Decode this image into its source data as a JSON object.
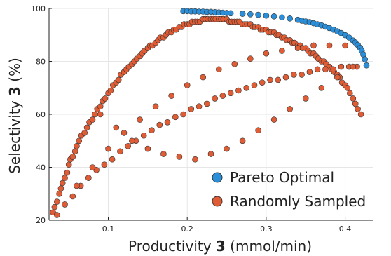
{
  "chart_data": {
    "type": "scatter",
    "xlabel": {
      "prefix": "Productivity ",
      "bold": "3",
      "suffix": " (mmol/min)"
    },
    "ylabel": {
      "prefix": "Selectivity ",
      "bold": "3",
      "suffix": " (%)"
    },
    "xlim": [
      0.025,
      0.435
    ],
    "ylim": [
      20,
      100
    ],
    "xticks": [
      0.1,
      0.2,
      0.3,
      0.4
    ],
    "xtick_labels": [
      "0.1",
      "0.2",
      "0.3",
      "0.4"
    ],
    "yticks": [
      20,
      40,
      60,
      80,
      100
    ],
    "ytick_labels": [
      "20",
      "40",
      "60",
      "80",
      "100"
    ],
    "grid": true,
    "legend_position": "bottom-right",
    "colors": {
      "pareto": "#2a8fd8",
      "random": "#e05c35",
      "marker_edge": "#333333"
    },
    "series": [
      {
        "name": "Pareto Optimal",
        "x": [
          0.195,
          0.2,
          0.205,
          0.21,
          0.215,
          0.22,
          0.225,
          0.23,
          0.235,
          0.24,
          0.245,
          0.25,
          0.255,
          0.27,
          0.28,
          0.29,
          0.3,
          0.31,
          0.32,
          0.33,
          0.34,
          0.345,
          0.35,
          0.355,
          0.36,
          0.365,
          0.37,
          0.375,
          0.38,
          0.385,
          0.39,
          0.395,
          0.4,
          0.405,
          0.41,
          0.413,
          0.416,
          0.419,
          0.421,
          0.423,
          0.425,
          0.427
        ],
        "y": [
          99.0,
          99.0,
          98.9,
          98.9,
          98.8,
          98.8,
          98.7,
          98.7,
          98.6,
          98.5,
          98.4,
          98.3,
          98.2,
          98.0,
          97.8,
          97.6,
          97.3,
          97.0,
          96.6,
          96.2,
          95.7,
          95.4,
          95.1,
          94.8,
          94.4,
          94.0,
          93.6,
          93.1,
          92.6,
          92.0,
          91.4,
          90.7,
          89.9,
          89.0,
          87.9,
          87.1,
          86.2,
          85.1,
          84.0,
          82.6,
          80.8,
          78.5
        ]
      },
      {
        "name": "Randomly Sampled",
        "x": [
          0.03,
          0.032,
          0.035,
          0.038,
          0.04,
          0.042,
          0.045,
          0.048,
          0.05,
          0.052,
          0.055,
          0.058,
          0.06,
          0.063,
          0.066,
          0.07,
          0.073,
          0.076,
          0.08,
          0.083,
          0.086,
          0.09,
          0.093,
          0.096,
          0.1,
          0.103,
          0.106,
          0.11,
          0.113,
          0.116,
          0.12,
          0.123,
          0.126,
          0.13,
          0.133,
          0.136,
          0.14,
          0.143,
          0.146,
          0.15,
          0.153,
          0.156,
          0.16,
          0.163,
          0.166,
          0.17,
          0.173,
          0.176,
          0.18,
          0.183,
          0.186,
          0.19,
          0.193,
          0.196,
          0.2,
          0.203,
          0.206,
          0.21,
          0.213,
          0.216,
          0.22,
          0.223,
          0.226,
          0.23,
          0.233,
          0.236,
          0.24,
          0.243,
          0.246,
          0.25,
          0.253,
          0.256,
          0.26,
          0.263,
          0.266,
          0.27,
          0.273,
          0.276,
          0.28,
          0.283,
          0.286,
          0.29,
          0.293,
          0.296,
          0.3,
          0.303,
          0.306,
          0.31,
          0.313,
          0.316,
          0.32,
          0.323,
          0.326,
          0.33,
          0.333,
          0.336,
          0.34,
          0.343,
          0.346,
          0.35,
          0.353,
          0.356,
          0.36,
          0.363,
          0.366,
          0.37,
          0.373,
          0.376,
          0.38,
          0.383,
          0.386,
          0.39,
          0.393,
          0.396,
          0.4,
          0.403,
          0.406,
          0.41,
          0.413,
          0.416,
          0.42,
          0.035,
          0.045,
          0.055,
          0.065,
          0.075,
          0.085,
          0.095,
          0.105,
          0.115,
          0.125,
          0.135,
          0.145,
          0.155,
          0.165,
          0.175,
          0.185,
          0.195,
          0.205,
          0.215,
          0.225,
          0.235,
          0.245,
          0.255,
          0.265,
          0.275,
          0.285,
          0.295,
          0.305,
          0.315,
          0.325,
          0.335,
          0.345,
          0.355,
          0.365,
          0.375,
          0.385,
          0.395,
          0.405,
          0.415,
          0.06,
          0.08,
          0.1,
          0.12,
          0.14,
          0.16,
          0.18,
          0.2,
          0.22,
          0.24,
          0.26,
          0.28,
          0.3,
          0.32,
          0.34,
          0.36,
          0.38,
          0.4,
          0.09,
          0.11,
          0.13,
          0.15,
          0.17,
          0.19,
          0.21,
          0.23,
          0.25,
          0.27,
          0.29,
          0.31,
          0.33,
          0.35,
          0.37,
          0.39,
          0.41
        ],
        "y": [
          23,
          25,
          27,
          30,
          32,
          34,
          36,
          38,
          41,
          43,
          44,
          46,
          48,
          50,
          52,
          53,
          55,
          57,
          58,
          60,
          62,
          63,
          65,
          66,
          68,
          69,
          71,
          72,
          73,
          75,
          76,
          77,
          78,
          79,
          80,
          81,
          82,
          83,
          84,
          85,
          86,
          86,
          87,
          88,
          89,
          89,
          90,
          91,
          91,
          92,
          92,
          93,
          93,
          94,
          94,
          94,
          95,
          95,
          95,
          95,
          96,
          96,
          96,
          96,
          96,
          96,
          96,
          96,
          96,
          96,
          95,
          95,
          95,
          95,
          95,
          94,
          94,
          94,
          94,
          93,
          93,
          93,
          92,
          92,
          92,
          91,
          91,
          91,
          90,
          90,
          89,
          89,
          88,
          88,
          87,
          87,
          86,
          86,
          85,
          85,
          84,
          83,
          83,
          82,
          81,
          80,
          80,
          79,
          78,
          77,
          76,
          75,
          74,
          72,
          71,
          70,
          68,
          66,
          64,
          62,
          60,
          22,
          26,
          29,
          33,
          36,
          39,
          41,
          43,
          46,
          48,
          50,
          52,
          54,
          56,
          57,
          59,
          60,
          62,
          63,
          64,
          66,
          67,
          68,
          69,
          70,
          71,
          72,
          73,
          73,
          74,
          75,
          75,
          76,
          77,
          77,
          77,
          78,
          78,
          78,
          33,
          40,
          47,
          53,
          58,
          63,
          67,
          71,
          74,
          77,
          79,
          81,
          83,
          84,
          85,
          86,
          86,
          86,
          60,
          55,
          50,
          47,
          45,
          44,
          43,
          45,
          47,
          50,
          54,
          58,
          62,
          66,
          70,
          74,
          78
        ]
      }
    ]
  },
  "legend": {
    "items": [
      {
        "label": "Pareto Optimal",
        "color": "#2a8fd8"
      },
      {
        "label": "Randomly Sampled",
        "color": "#e05c35"
      }
    ]
  }
}
